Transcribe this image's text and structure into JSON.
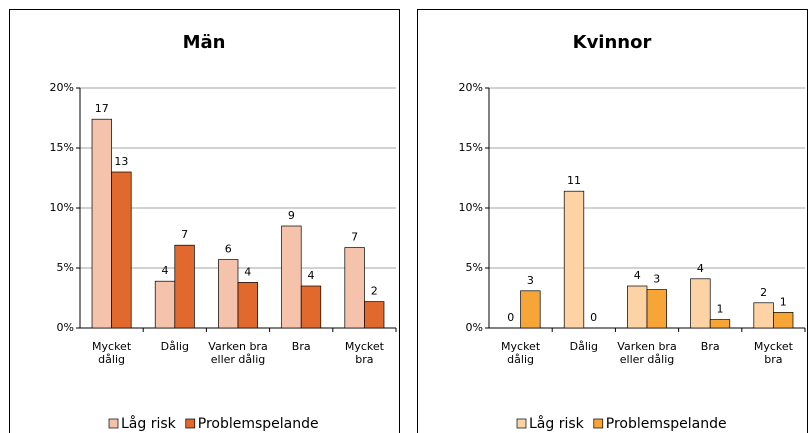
{
  "chart_data": [
    {
      "type": "bar",
      "title": "Män",
      "categories": [
        "Mycket dålig",
        "Dålig",
        "Varken bra eller dålig",
        "Bra",
        "Mycket bra"
      ],
      "series": [
        {
          "name": "Låg risk",
          "color": "#f5c3ab",
          "values": [
            17.4,
            3.9,
            5.7,
            8.5,
            6.7
          ],
          "value_labels": [
            "17",
            "4",
            "6",
            "9",
            "7"
          ]
        },
        {
          "name": "Problemspelande",
          "color": "#e2692d",
          "values": [
            13,
            6.9,
            3.8,
            3.5,
            2.2
          ],
          "value_labels": [
            "13",
            "7",
            "4",
            "4",
            "2"
          ]
        }
      ],
      "ylim": [
        0,
        20
      ],
      "yticks": [
        {
          "value": 0,
          "label": "0%"
        },
        {
          "value": 5,
          "label": "5%"
        },
        {
          "value": 10,
          "label": "10%"
        },
        {
          "value": 15,
          "label": "15%"
        },
        {
          "value": 20,
          "label": "20%"
        }
      ],
      "grid": true,
      "legend": "bottom"
    },
    {
      "type": "bar",
      "title": "Kvinnor",
      "categories": [
        "Mycket dålig",
        "Dålig",
        "Varken bra eller dålig",
        "Bra",
        "Mycket bra"
      ],
      "series": [
        {
          "name": "Låg risk",
          "color": "#fdd3a5",
          "values": [
            0,
            11.4,
            3.5,
            4.1,
            2.1
          ],
          "value_labels": [
            "0",
            "11",
            "4",
            "4",
            "2"
          ]
        },
        {
          "name": "Problemspelande",
          "color": "#f7a537",
          "values": [
            3.1,
            0,
            3.2,
            0.7,
            1.3
          ],
          "value_labels": [
            "3",
            "0",
            "3",
            "1",
            "1"
          ]
        }
      ],
      "ylim": [
        0,
        20
      ],
      "yticks": [
        {
          "value": 0,
          "label": "0%"
        },
        {
          "value": 5,
          "label": "5%"
        },
        {
          "value": 10,
          "label": "10%"
        },
        {
          "value": 15,
          "label": "15%"
        },
        {
          "value": 20,
          "label": "20%"
        }
      ],
      "grid": true,
      "legend": "bottom"
    }
  ]
}
